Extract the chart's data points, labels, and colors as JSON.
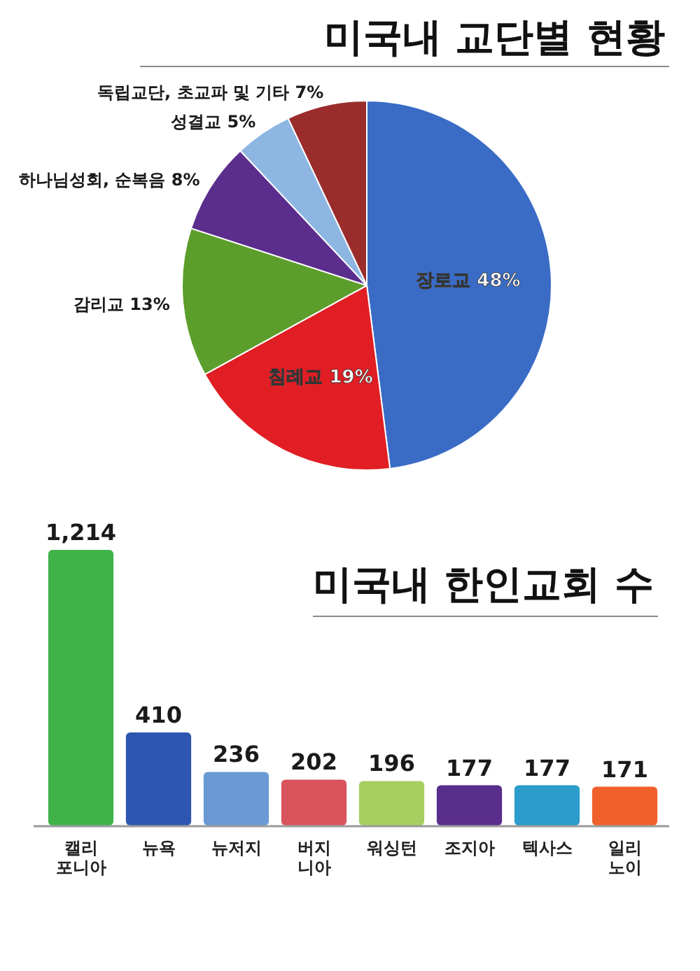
{
  "chart_data": [
    {
      "type": "pie",
      "title": "미국내 교단별 현황",
      "categories": [
        "장로교",
        "침례교",
        "감리교",
        "하나님성회, 순복음",
        "성결교",
        "독립교단, 초교파 및 기타"
      ],
      "values": [
        48,
        19,
        13,
        8,
        5,
        7
      ],
      "value_labels": [
        "48%",
        "19%",
        "13%",
        "8%",
        "5%",
        "7%"
      ],
      "colors": [
        "#3a6cc6",
        "#e01e24",
        "#5c9e2c",
        "#5b2d8c",
        "#8db6e2",
        "#9b2c2c"
      ]
    },
    {
      "type": "bar",
      "title": "미국내 한인교회 수",
      "categories": [
        "캘리\n포니아",
        "뉴욕",
        "뉴저지",
        "버지\n니아",
        "워싱턴",
        "조지아",
        "텍사스",
        "일리\n노이"
      ],
      "values": [
        1214,
        410,
        236,
        202,
        196,
        177,
        177,
        171
      ],
      "value_labels": [
        "1,214",
        "410",
        "236",
        "202",
        "196",
        "177",
        "177",
        "171"
      ],
      "colors": [
        "#3fb34a",
        "#2c56b0",
        "#6a9ad6",
        "#d9545c",
        "#a6cf62",
        "#5a2e8c",
        "#2b9ccb",
        "#f0602a"
      ]
    }
  ]
}
